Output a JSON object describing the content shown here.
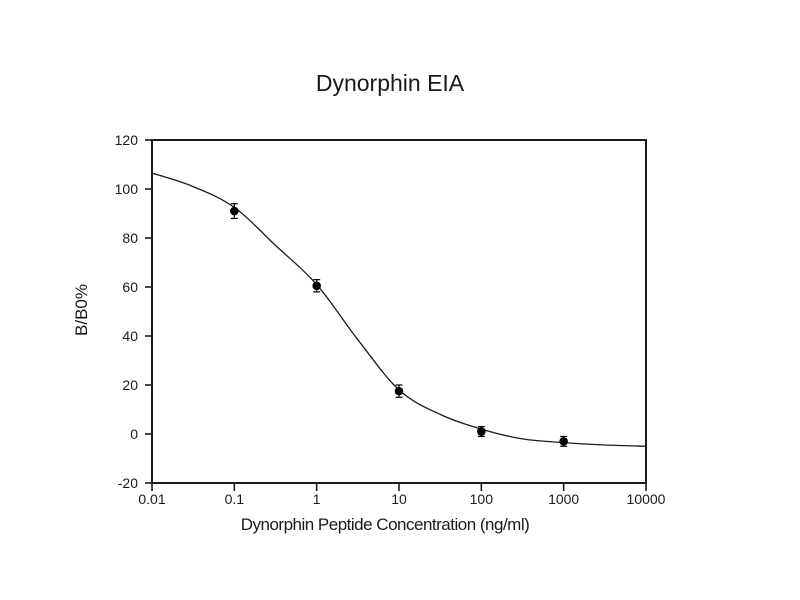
{
  "figure": {
    "background": "#ffffff"
  },
  "chart_data": {
    "type": "scatter",
    "title": "Dynorphin EIA",
    "xlabel": "Dynorphin Peptide Concentration (ng/ml)",
    "ylabel": "B/B0%",
    "x_scale": "log10",
    "xlim": [
      0.01,
      10000
    ],
    "ylim": [
      -20,
      120
    ],
    "grid": false,
    "legend": false,
    "x_ticks": [
      {
        "value": 0.01,
        "label": "0.01"
      },
      {
        "value": 0.1,
        "label": "0.1"
      },
      {
        "value": 1,
        "label": "1"
      },
      {
        "value": 10,
        "label": "10"
      },
      {
        "value": 100,
        "label": "100"
      },
      {
        "value": 1000,
        "label": "1000"
      },
      {
        "value": 10000,
        "label": "10000"
      }
    ],
    "y_ticks": [
      {
        "value": 120,
        "label": "120"
      },
      {
        "value": 100,
        "label": "100"
      },
      {
        "value": 80,
        "label": "80"
      },
      {
        "value": 60,
        "label": "60"
      },
      {
        "value": 40,
        "label": "40"
      },
      {
        "value": 20,
        "label": "20"
      },
      {
        "value": 0,
        "label": "0"
      },
      {
        "value": -20,
        "label": "-20"
      }
    ],
    "series": [
      {
        "name": "4pl-fit-curve",
        "type": "line",
        "color": "#1a1a1a",
        "samples_log10x_y": [
          [
            -2.0,
            106.5
          ],
          [
            -1.5,
            101
          ],
          [
            -1.0,
            92.5
          ],
          [
            -0.5,
            77
          ],
          [
            0.0,
            61
          ],
          [
            0.5,
            38.5
          ],
          [
            1.0,
            18
          ],
          [
            1.5,
            8
          ],
          [
            2.0,
            2
          ],
          [
            2.5,
            -2
          ],
          [
            3.0,
            -3.5
          ],
          [
            3.5,
            -4.5
          ],
          [
            4.0,
            -5
          ]
        ]
      },
      {
        "name": "standard-points",
        "type": "scatter",
        "marker": "filled-circle",
        "color": "#000000",
        "points": [
          {
            "x": 0.1,
            "y": 91,
            "err": 3
          },
          {
            "x": 1,
            "y": 60.5,
            "err": 2.5
          },
          {
            "x": 10,
            "y": 17.5,
            "err": 2.5
          },
          {
            "x": 100,
            "y": 1,
            "err": 2
          },
          {
            "x": 1000,
            "y": -3,
            "err": 2
          }
        ]
      }
    ],
    "colors": {
      "frame": "#1a1a1a",
      "text": "#1a1a1a",
      "marker": "#000000",
      "background": "#ffffff"
    }
  }
}
